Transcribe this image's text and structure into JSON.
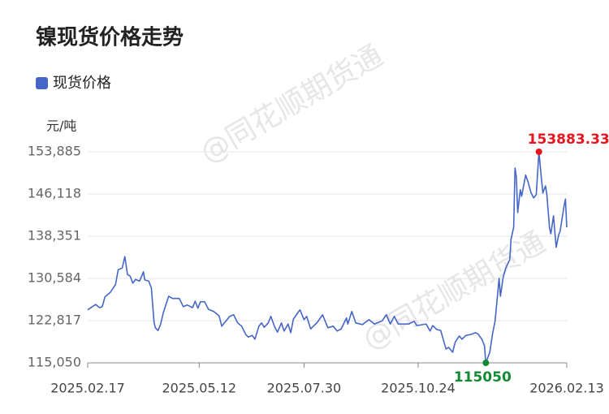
{
  "chart_data": {
    "type": "line",
    "title": "镍现货价格走势",
    "y_unit": "元/吨",
    "watermark": "@同花顺期货通",
    "legend_position": "top-left",
    "grid": true,
    "xlim": [
      "2025.02.17",
      "2026.02.13"
    ],
    "xticks": [
      "2025.02.17",
      "2025.05.12",
      "2025.07.30",
      "2025.10.24",
      "2026.02.13"
    ],
    "ylim": [
      115050,
      153885
    ],
    "yticks": [
      {
        "value": 115050,
        "label": "115,050"
      },
      {
        "value": 122817,
        "label": "122,817"
      },
      {
        "value": 130584,
        "label": "130,584"
      },
      {
        "value": 138351,
        "label": "138,351"
      },
      {
        "value": 146118,
        "label": "146,118"
      },
      {
        "value": 153885,
        "label": "153,885"
      }
    ],
    "max_color": "#e8141e",
    "min_color": "#128a34",
    "x": [
      "2025.02.17",
      "2025.02.23",
      "2025.02.26",
      "2025.02.28",
      "2025.03.02",
      "2025.03.06",
      "2025.03.10",
      "2025.03.12",
      "2025.03.15",
      "2025.03.17",
      "2025.03.19",
      "2025.03.21",
      "2025.03.23",
      "2025.03.25",
      "2025.03.28",
      "2025.03.29",
      "2025.03.31",
      "2025.04.01",
      "2025.04.04",
      "2025.04.06",
      "2025.04.08",
      "2025.04.09",
      "2025.04.11",
      "2025.04.13",
      "2025.04.15",
      "2025.04.17",
      "2025.04.19",
      "2025.04.22",
      "2025.04.27",
      "2025.04.30",
      "2025.05.03",
      "2025.05.07",
      "2025.05.09",
      "2025.05.11",
      "2025.05.13",
      "2025.05.16",
      "2025.05.19",
      "2025.05.23",
      "2025.05.27",
      "2025.05.29",
      "2025.06.01",
      "2025.06.04",
      "2025.06.07",
      "2025.06.10",
      "2025.06.13",
      "2025.06.16",
      "2025.06.18",
      "2025.06.21",
      "2025.06.23",
      "2025.06.26",
      "2025.06.28",
      "2025.06.30",
      "2025.07.03",
      "2025.07.05",
      "2025.07.08",
      "2025.07.10",
      "2025.07.13",
      "2025.07.15",
      "2025.07.18",
      "2025.07.20",
      "2025.07.22",
      "2025.07.26",
      "2025.07.27",
      "2025.07.30",
      "2025.08.01",
      "2025.08.04",
      "2025.08.09",
      "2025.08.13",
      "2025.08.17",
      "2025.08.21",
      "2025.08.24",
      "2025.08.27",
      "2025.08.31",
      "2025.09.01",
      "2025.09.04",
      "2025.09.07",
      "2025.09.12",
      "2025.09.17",
      "2025.09.21",
      "2025.09.27",
      "2025.09.30",
      "2025.10.03",
      "2025.10.06",
      "2025.10.09",
      "2025.10.17",
      "2025.10.21",
      "2025.10.23",
      "2025.10.30",
      "2025.11.02",
      "2025.11.04",
      "2025.11.07",
      "2025.11.10",
      "2025.11.14",
      "2025.11.16",
      "2025.11.19",
      "2025.11.21",
      "2025.11.24",
      "2025.11.26",
      "2025.11.29",
      "2025.12.03",
      "2025.12.06",
      "2025.12.08",
      "2025.12.11",
      "2025.12.13",
      "2025.12.14",
      "2025.12.17",
      "2025.12.19",
      "2025.12.21",
      "2025.12.24",
      "2025.12.25",
      "2025.12.27",
      "2025.12.29",
      "2026.01.01",
      "2026.01.02",
      "2026.01.04",
      "2026.01.05",
      "2026.01.06",
      "2026.01.07",
      "2026.01.09",
      "2026.01.10",
      "2026.01.13",
      "2026.01.15",
      "2026.01.17",
      "2026.01.19",
      "2026.01.21",
      "2026.01.23",
      "2026.01.25",
      "2026.01.26",
      "2026.01.28",
      "2026.01.29",
      "2026.01.31",
      "2026.02.01",
      "2026.02.03",
      "2026.02.05",
      "2026.02.07",
      "2026.02.08",
      "2026.02.11",
      "2026.02.12",
      "2026.02.13"
    ],
    "series": [
      {
        "name": "现货价格",
        "color": "#4566c8",
        "values": [
          124800,
          125800,
          125200,
          125400,
          127200,
          128000,
          129500,
          132200,
          132500,
          134600,
          131300,
          131000,
          129700,
          130400,
          130100,
          130600,
          131800,
          130300,
          130100,
          128800,
          122500,
          121500,
          121000,
          122200,
          124300,
          125800,
          127300,
          126900,
          126900,
          125400,
          125700,
          125200,
          126400,
          125100,
          126300,
          126300,
          124900,
          124500,
          123700,
          121800,
          122700,
          123600,
          123900,
          122400,
          121800,
          120300,
          119800,
          120100,
          119400,
          121800,
          122400,
          121600,
          122400,
          123600,
          121600,
          120700,
          122400,
          120900,
          122200,
          120600,
          123100,
          124500,
          124800,
          123000,
          123600,
          121300,
          122500,
          123900,
          121500,
          121800,
          120900,
          121300,
          123300,
          122200,
          124500,
          122400,
          122100,
          123000,
          122200,
          122800,
          123900,
          122200,
          123600,
          122200,
          122200,
          122700,
          121900,
          122200,
          120900,
          121900,
          121200,
          121000,
          117600,
          117900,
          117000,
          118900,
          120000,
          119400,
          120100,
          120300,
          120600,
          120400,
          119400,
          118200,
          115050,
          117000,
          120300,
          122800,
          130600,
          127300,
          130700,
          132500,
          134000,
          137800,
          140000,
          150900,
          149300,
          142700,
          146900,
          145700,
          149600,
          148200,
          146400,
          145400,
          146000,
          153883.33,
          148700,
          146300,
          147600,
          146000,
          139900,
          138800,
          142100,
          136300,
          138700,
          139300,
          144000,
          145200,
          140000
        ]
      }
    ]
  }
}
